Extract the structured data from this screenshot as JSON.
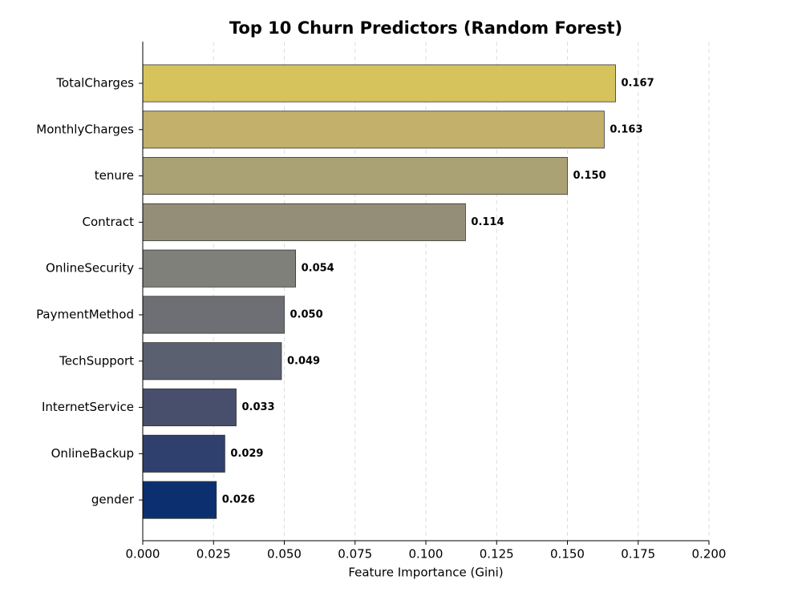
{
  "chart_data": {
    "type": "barh",
    "title": "Top 10 Churn Predictors (Random Forest)",
    "x_label": "Feature Importance (Gini)",
    "categories": [
      "TotalCharges",
      "MonthlyCharges",
      "tenure",
      "Contract",
      "OnlineSecurity",
      "PaymentMethod",
      "TechSupport",
      "InternetService",
      "OnlineBackup",
      "gender"
    ],
    "values": [
      0.167,
      0.163,
      0.15,
      0.114,
      0.054,
      0.05,
      0.049,
      0.033,
      0.029,
      0.026
    ],
    "value_labels": [
      "0.167",
      "0.163",
      "0.150",
      "0.114",
      "0.054",
      "0.050",
      "0.049",
      "0.033",
      "0.029",
      "0.026"
    ],
    "colors": [
      "#d6c35c",
      "#c2b06b",
      "#aaa175",
      "#948e78",
      "#80807a",
      "#6e6f74",
      "#5a606f",
      "#474f6c",
      "#30406e",
      "#0c306f"
    ],
    "xlim": [
      0,
      0.2
    ],
    "xticks": [
      {
        "value": 0,
        "label": "0.000"
      },
      {
        "value": 0.025,
        "label": "0.025"
      },
      {
        "value": 0.05,
        "label": "0.050"
      },
      {
        "value": 0.075,
        "label": "0.075"
      },
      {
        "value": 0.1,
        "label": "0.100"
      },
      {
        "value": 0.125,
        "label": "0.125"
      },
      {
        "value": 0.15,
        "label": "0.150"
      },
      {
        "value": 0.175,
        "label": "0.175"
      },
      {
        "value": 0.2,
        "label": "0.200"
      }
    ],
    "grid": true
  }
}
